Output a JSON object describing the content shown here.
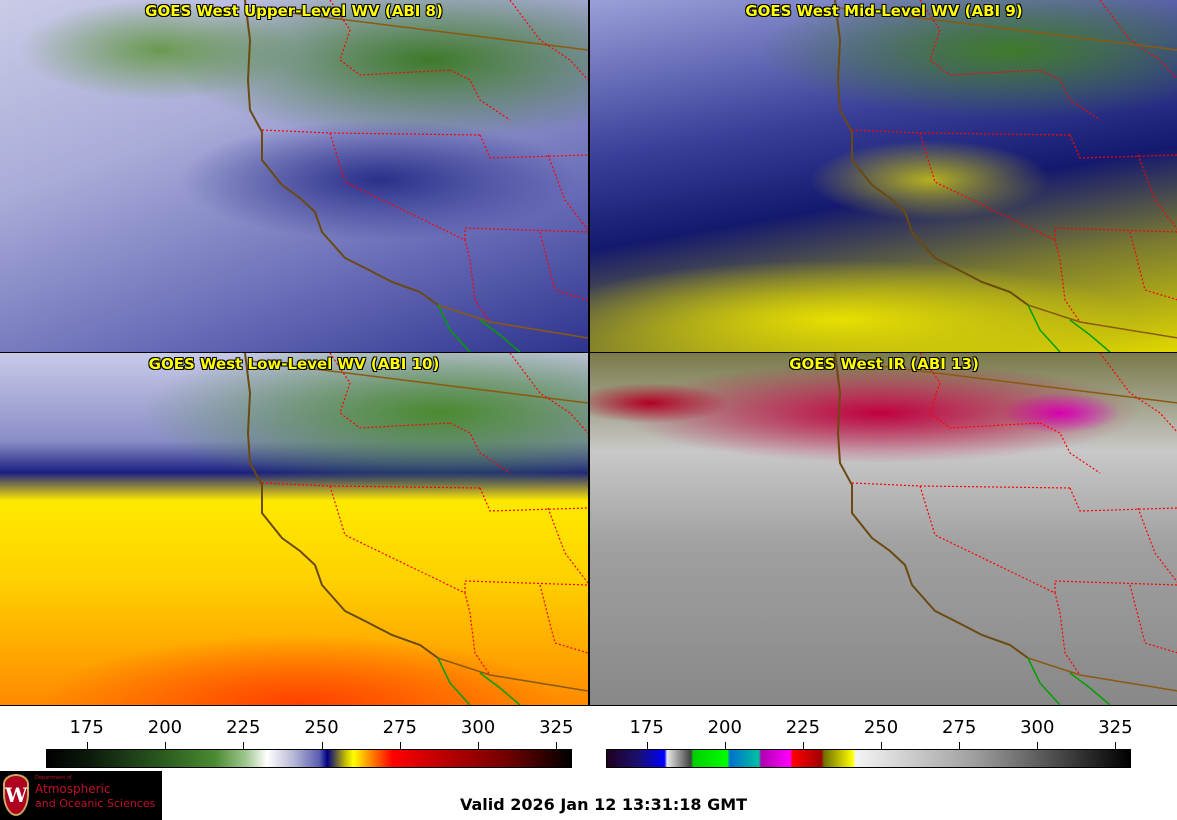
{
  "panels": [
    {
      "title": "GOES West Upper-Level WV (ABI 8)"
    },
    {
      "title": "GOES West Mid-Level WV (ABI 9)"
    },
    {
      "title": "GOES West Low-Level WV (ABI 10)"
    },
    {
      "title": "GOES West IR (ABI 13)"
    }
  ],
  "colorbars": [
    {
      "name": "water-vapor",
      "ticks": [
        "175",
        "200",
        "225",
        "250",
        "275",
        "300",
        "325"
      ],
      "range": [
        162,
        330
      ]
    },
    {
      "name": "infrared",
      "ticks": [
        "175",
        "200",
        "225",
        "250",
        "275",
        "300",
        "325"
      ],
      "range": [
        162,
        330
      ]
    }
  ],
  "logo": {
    "line1": "Department of",
    "line2": "Atmospheric",
    "line3": "and Oceanic Sciences",
    "crest": "W"
  },
  "valid_time": "Valid 2026 Jan 12 13:31:18 GMT",
  "colors": {
    "title": "#ffff00",
    "state_border": "#ff0000",
    "coast": "#6b4a10",
    "mexico_border": "#00a000"
  }
}
